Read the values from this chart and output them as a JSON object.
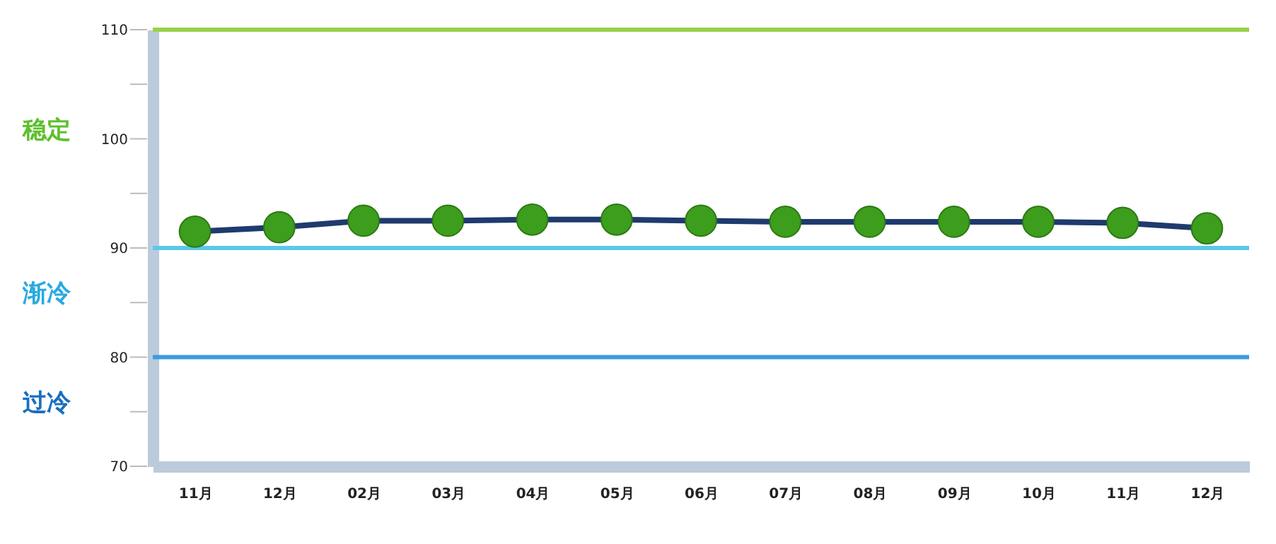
{
  "chart_data": {
    "type": "line",
    "categories": [
      "11月",
      "12月",
      "02月",
      "03月",
      "04月",
      "05月",
      "06月",
      "07月",
      "08月",
      "09月",
      "10月",
      "11月",
      "12月"
    ],
    "series": [
      {
        "color": "#1f3a6e",
        "values": [
          91.5,
          91.9,
          92.5,
          92.5,
          92.6,
          92.6,
          92.5,
          92.4,
          92.4,
          92.4,
          92.4,
          92.3,
          91.8
        ]
      }
    ],
    "marker": "circle",
    "line_style": "solid",
    "ylim": [
      70,
      110
    ],
    "yticks": [
      70,
      {
        "value": 75,
        "label": null
      },
      80,
      {
        "value": 85,
        "label": null
      },
      90,
      {
        "value": 95,
        "label": null
      },
      100,
      {
        "value": 105,
        "label": null
      },
      110
    ],
    "grid": false,
    "ref_lines": [
      {
        "axis": "y",
        "value": 110,
        "color": "#99d14a"
      },
      {
        "axis": "y",
        "value": 90,
        "color": "#5cc8ea"
      },
      {
        "axis": "y",
        "value": 80,
        "color": "#3a9be0"
      }
    ],
    "annotations": [
      "稳定",
      "渐冷",
      "过冷"
    ]
  }
}
